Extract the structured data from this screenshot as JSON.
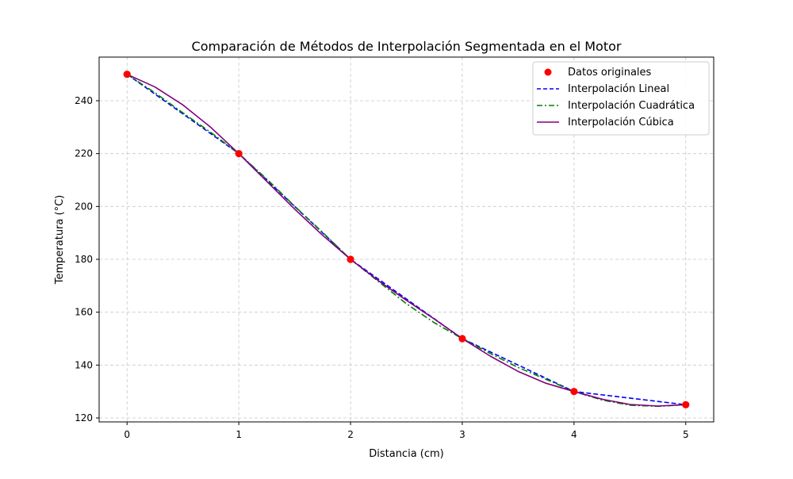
{
  "chart_data": {
    "type": "line",
    "title": "Comparación de Métodos de Interpolación Segmentada en el Motor",
    "xlabel": "Distancia (cm)",
    "ylabel": "Temperatura (°C)",
    "xlim": [
      -0.25,
      5.25
    ],
    "ylim": [
      118.5,
      256.5
    ],
    "x_ticks": [
      0,
      1,
      2,
      3,
      4,
      5
    ],
    "y_ticks": [
      120,
      140,
      160,
      180,
      200,
      220,
      240
    ],
    "grid": true,
    "legend_position": "top-right",
    "points": {
      "name": "Datos originales",
      "color": "#ff0000",
      "x": [
        0,
        1,
        2,
        3,
        4,
        5
      ],
      "y": [
        250,
        220,
        180,
        150,
        130,
        125
      ]
    },
    "series": [
      {
        "name": "Interpolación Lineal",
        "color": "#0000ff",
        "style": "dashed",
        "x": [
          0,
          1,
          2,
          3,
          4,
          5
        ],
        "y": [
          250,
          220,
          180,
          150,
          130,
          125
        ]
      },
      {
        "name": "Interpolación Cuadrática",
        "color": "#008000",
        "style": "dashdot",
        "x": [
          0,
          0.25,
          0.5,
          0.75,
          1,
          1.25,
          1.5,
          1.75,
          2,
          2.25,
          2.5,
          2.75,
          3,
          3.25,
          3.5,
          3.75,
          4,
          4.25,
          4.5,
          4.75,
          5
        ],
        "y": [
          250,
          243.0,
          235.4,
          228.0,
          220,
          210.4,
          200.1,
          190.2,
          180,
          171.6,
          163.2,
          156.0,
          150,
          144.4,
          139.1,
          134.6,
          130,
          126.8,
          124.8,
          124.4,
          125
        ]
      },
      {
        "name": "Interpolación Cúbica",
        "color": "#800080",
        "style": "solid",
        "x": [
          0,
          0.25,
          0.5,
          0.75,
          1,
          1.25,
          1.5,
          1.75,
          2,
          2.25,
          2.5,
          2.75,
          3,
          3.25,
          3.5,
          3.75,
          4,
          4.25,
          4.5,
          4.75,
          5
        ],
        "y": [
          250,
          245.2,
          238.4,
          229.9,
          220,
          209.5,
          199.0,
          189.1,
          180,
          171.9,
          164.5,
          157.4,
          150,
          143.4,
          137.6,
          133.1,
          130,
          127.1,
          125.1,
          124.5,
          125
        ]
      }
    ]
  }
}
